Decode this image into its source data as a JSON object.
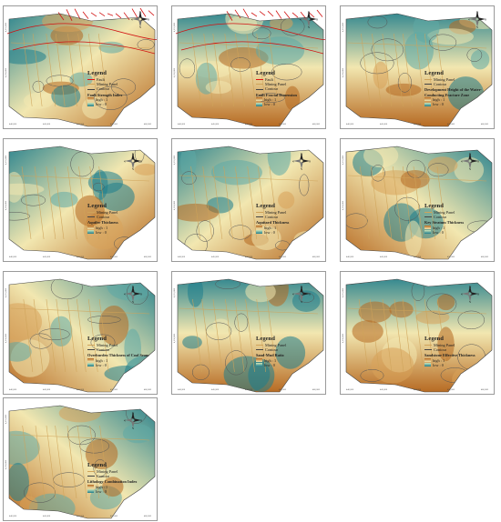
{
  "legend_common": {
    "title": "Legend",
    "fault": "Fault",
    "mining_panel": "Mining Panel",
    "contour": "Contour",
    "high": "high : 1",
    "low": "low : 0"
  },
  "north_arrow": {
    "n": "N",
    "s": "S",
    "e": "E",
    "w": "W"
  },
  "x_ticks": [
    "440,000",
    "445,000",
    "450,000",
    "455,000",
    "460,000"
  ],
  "y_ticks": [
    "4,155,000",
    "4,150,000"
  ],
  "panels": [
    {
      "title": "Fault Strength Index",
      "has_fault": true
    },
    {
      "title": "Fault Fractal Dimension",
      "has_fault": true
    },
    {
      "title": "Development Height of the Water-Conducting Fracture Zone",
      "has_fault": false
    },
    {
      "title": "Aquifer Thickness",
      "has_fault": false
    },
    {
      "title": "Aquitard Thickness",
      "has_fault": false
    },
    {
      "title": "Key Stratum Thickness",
      "has_fault": false
    },
    {
      "title": "Overburden Thickness of Coal Seam",
      "has_fault": false
    },
    {
      "title": "Sand-Mud Ratio",
      "has_fault": false
    },
    {
      "title": "Sandstone Effective Thickness",
      "has_fault": false
    },
    {
      "title": "Lithology Combination Index",
      "has_fault": false
    }
  ],
  "colors": {
    "high": "#b5671f",
    "mid": "#f2e7b0",
    "low": "#1e7d8c",
    "fault": "#d11111",
    "mining": "#cfa35a"
  }
}
